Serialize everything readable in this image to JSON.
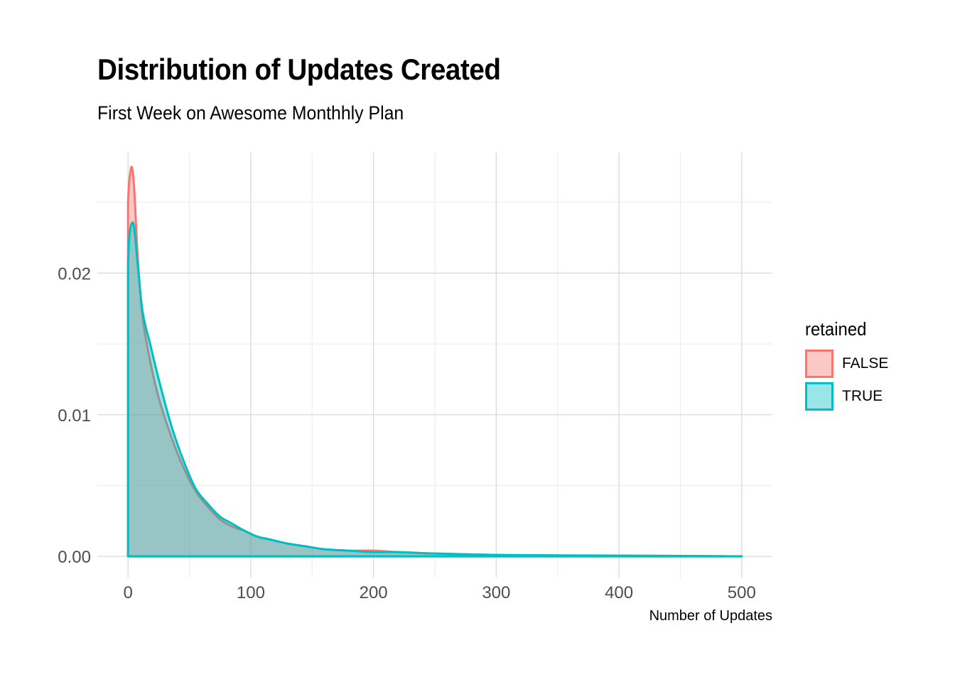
{
  "title": "Distribution of Updates Created",
  "subtitle": "First Week on Awesome Monthhly Plan",
  "chart_data": {
    "type": "area",
    "xlabel": "Number of Updates",
    "ylabel": "",
    "xlim": [
      -25,
      525
    ],
    "ylim": [
      -0.0015,
      0.0285
    ],
    "x_ticks": [
      "0",
      "100",
      "200",
      "300",
      "400",
      "500"
    ],
    "y_ticks": [
      "0.00",
      "0.01",
      "0.02"
    ],
    "x_tick_values": [
      0,
      100,
      200,
      300,
      400,
      500
    ],
    "y_tick_values": [
      0.0,
      0.01,
      0.02
    ],
    "grid": true,
    "legend_position": "right",
    "legend_title": "retained",
    "series": [
      {
        "name": "FALSE",
        "color": "#F8766D",
        "fill": "#F8766D",
        "x": [
          0,
          1,
          3,
          5,
          8,
          12,
          18,
          25,
          35,
          45,
          55,
          65,
          75,
          85,
          95,
          105,
          115,
          130,
          145,
          160,
          180,
          200,
          220,
          250,
          300,
          350,
          400,
          450,
          500
        ],
        "y": [
          0.025,
          0.0265,
          0.0275,
          0.026,
          0.021,
          0.0168,
          0.0138,
          0.0112,
          0.0085,
          0.0063,
          0.0046,
          0.0035,
          0.0026,
          0.0021,
          0.0018,
          0.0014,
          0.0012,
          0.0009,
          0.0007,
          0.0005,
          0.0004,
          0.0004,
          0.0003,
          0.0002,
          0.0001,
          6e-05,
          4e-05,
          3e-05,
          0.0
        ]
      },
      {
        "name": "TRUE",
        "color": "#00BFC4",
        "fill": "#00BFC4",
        "x": [
          0,
          1,
          3,
          5,
          8,
          12,
          18,
          25,
          35,
          45,
          55,
          65,
          75,
          85,
          95,
          105,
          115,
          130,
          145,
          160,
          180,
          200,
          220,
          250,
          300,
          350,
          400,
          450,
          500
        ],
        "y": [
          0.0205,
          0.0225,
          0.0235,
          0.0232,
          0.0205,
          0.0172,
          0.015,
          0.0125,
          0.0093,
          0.0068,
          0.0048,
          0.0037,
          0.0028,
          0.0023,
          0.0018,
          0.0014,
          0.0012,
          0.0009,
          0.0007,
          0.0005,
          0.0004,
          0.0003,
          0.0003,
          0.0002,
          0.0001,
          7e-05,
          5e-05,
          3e-05,
          0.0
        ]
      }
    ]
  }
}
